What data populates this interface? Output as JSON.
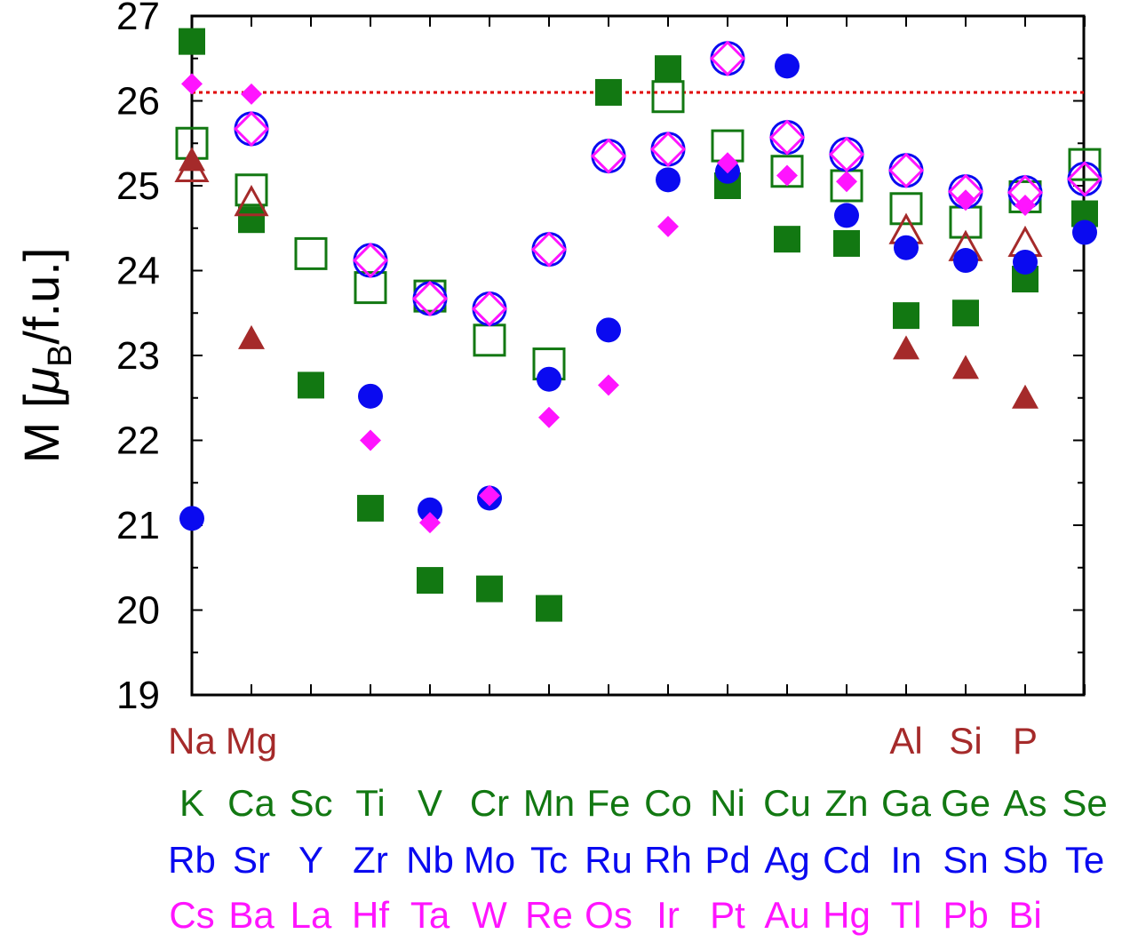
{
  "chart_data": {
    "type": "scatter",
    "ylabel": "M [μB/f.u.]",
    "ylabel_parts": {
      "main": "M [",
      "mu": "μ",
      "sub": "B",
      "tail": "/f.u.]"
    },
    "ylim": [
      19,
      27
    ],
    "yticks": [
      "19",
      "20",
      "21",
      "22",
      "23",
      "24",
      "25",
      "26",
      "27"
    ],
    "x_positions": 16,
    "reference_line": {
      "y": 26.1,
      "style": "dotted",
      "color": "#e00000"
    },
    "label_rows": [
      {
        "color": "#a52a2a",
        "labels": [
          "Na",
          "Mg",
          "",
          "",
          "",
          "",
          "",
          "",
          "",
          "",
          "",
          "",
          "Al",
          "Si",
          "P",
          ""
        ]
      },
      {
        "color": "#127812",
        "labels": [
          "K",
          "Ca",
          "Sc",
          "Ti",
          "V",
          "Cr",
          "Mn",
          "Fe",
          "Co",
          "Ni",
          "Cu",
          "Zn",
          "Ga",
          "Ge",
          "As",
          "Se"
        ]
      },
      {
        "color": "#0a0af0",
        "labels": [
          "Rb",
          "Sr",
          "Y",
          "Zr",
          "Nb",
          "Mo",
          "Tc",
          "Ru",
          "Rh",
          "Pd",
          "Ag",
          "Cd",
          "In",
          "Sn",
          "Sb",
          "Te"
        ]
      },
      {
        "color": "#ff14ff",
        "labels": [
          "Cs",
          "Ba",
          "La",
          "Hf",
          "Ta",
          "W",
          "Re",
          "Os",
          "Ir",
          "Pt",
          "Au",
          "Hg",
          "Tl",
          "Pb",
          "Bi",
          ""
        ]
      }
    ],
    "series": [
      {
        "marker": "square",
        "filled": true,
        "color": "#127812",
        "points": [
          [
            1,
            26.7
          ],
          [
            2,
            24.6
          ],
          [
            3,
            22.65
          ],
          [
            4,
            21.2
          ],
          [
            5,
            20.35
          ],
          [
            6,
            20.25
          ],
          [
            7,
            20.02
          ],
          [
            8,
            26.1
          ],
          [
            9,
            26.38
          ],
          [
            10,
            25.0
          ],
          [
            11,
            24.37
          ],
          [
            12,
            24.32
          ],
          [
            13,
            23.47
          ],
          [
            14,
            23.5
          ],
          [
            15,
            23.9
          ],
          [
            16,
            24.67
          ]
        ]
      },
      {
        "marker": "square",
        "filled": false,
        "color": "#127812",
        "points": [
          [
            1,
            25.5
          ],
          [
            2,
            24.95
          ],
          [
            3,
            24.2
          ],
          [
            4,
            23.8
          ],
          [
            5,
            23.7
          ],
          [
            6,
            23.18
          ],
          [
            7,
            22.9
          ],
          [
            9,
            26.05
          ],
          [
            10,
            25.47
          ],
          [
            11,
            25.17
          ],
          [
            12,
            25.0
          ],
          [
            13,
            24.73
          ],
          [
            14,
            24.57
          ],
          [
            15,
            24.87
          ],
          [
            16,
            25.25
          ]
        ]
      },
      {
        "marker": "triangle",
        "filled": true,
        "color": "#a52a2a",
        "points": [
          [
            1,
            25.3
          ],
          [
            2,
            23.2
          ],
          [
            13,
            23.08
          ],
          [
            14,
            22.85
          ],
          [
            15,
            22.5
          ]
        ]
      },
      {
        "marker": "triangle",
        "filled": false,
        "color": "#a52a2a",
        "points": [
          [
            1,
            25.2
          ],
          [
            2,
            24.8
          ],
          [
            13,
            24.47
          ],
          [
            14,
            24.27
          ],
          [
            15,
            24.32
          ]
        ]
      },
      {
        "marker": "circle",
        "filled": true,
        "color": "#0a0af0",
        "points": [
          [
            1,
            21.08
          ],
          [
            4,
            22.52
          ],
          [
            5,
            21.18
          ],
          [
            6,
            21.32
          ],
          [
            7,
            22.72
          ],
          [
            8,
            23.3
          ],
          [
            9,
            25.07
          ],
          [
            10,
            25.17
          ],
          [
            11,
            26.41
          ],
          [
            12,
            24.65
          ],
          [
            13,
            24.27
          ],
          [
            14,
            24.12
          ],
          [
            15,
            24.1
          ],
          [
            16,
            24.45
          ]
        ]
      },
      {
        "marker": "circle",
        "filled": false,
        "color": "#0a0af0",
        "points": [
          [
            2,
            25.67
          ],
          [
            4,
            24.12
          ],
          [
            5,
            23.67
          ],
          [
            6,
            23.55
          ],
          [
            7,
            24.25
          ],
          [
            8,
            25.35
          ],
          [
            9,
            25.43
          ],
          [
            10,
            26.5
          ],
          [
            11,
            25.57
          ],
          [
            12,
            25.37
          ],
          [
            13,
            25.18
          ],
          [
            14,
            24.93
          ],
          [
            15,
            24.92
          ],
          [
            16,
            25.08
          ]
        ]
      },
      {
        "marker": "diamond",
        "filled": true,
        "color": "#ff14ff",
        "points": [
          [
            1,
            26.2
          ],
          [
            2,
            26.08
          ],
          [
            4,
            22.0
          ],
          [
            5,
            21.03
          ],
          [
            6,
            21.35
          ],
          [
            7,
            22.27
          ],
          [
            8,
            22.65
          ],
          [
            9,
            24.52
          ],
          [
            10,
            25.27
          ],
          [
            11,
            25.12
          ],
          [
            12,
            25.05
          ],
          [
            14,
            24.83
          ],
          [
            15,
            24.77
          ]
        ]
      },
      {
        "marker": "diamond",
        "filled": false,
        "color": "#ff14ff",
        "points": [
          [
            2,
            25.67
          ],
          [
            4,
            24.12
          ],
          [
            5,
            23.67
          ],
          [
            6,
            23.55
          ],
          [
            7,
            24.25
          ],
          [
            8,
            25.35
          ],
          [
            9,
            25.43
          ],
          [
            10,
            26.5
          ],
          [
            11,
            25.57
          ],
          [
            12,
            25.37
          ],
          [
            13,
            25.18
          ],
          [
            14,
            24.93
          ],
          [
            15,
            24.92
          ],
          [
            16,
            25.08
          ]
        ]
      }
    ]
  }
}
